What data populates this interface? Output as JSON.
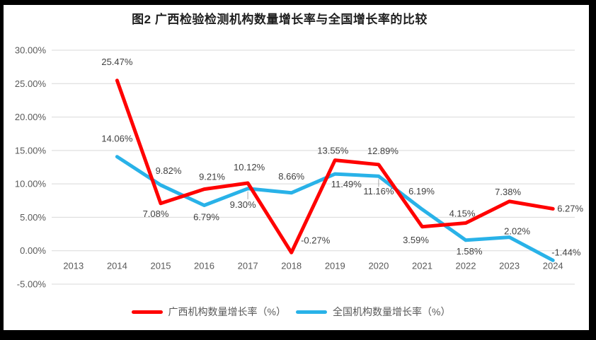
{
  "chart_data": {
    "type": "line",
    "title": "图2 广西检验检测机构数量增长率与全国增长率的比较",
    "categories": [
      "2013",
      "2014",
      "2015",
      "2016",
      "2017",
      "2018",
      "2019",
      "2020",
      "2021",
      "2022",
      "2023",
      "2024"
    ],
    "series": [
      {
        "name": "广西机构数量增长率（%）",
        "color": "#FF0000",
        "values": [
          null,
          25.47,
          7.08,
          9.21,
          10.12,
          -0.27,
          13.55,
          12.89,
          3.59,
          4.15,
          7.38,
          6.27
        ],
        "labels": [
          null,
          "25.47%",
          "7.08%",
          "9.21%",
          "10.12%",
          "-0.27%",
          "13.55%",
          "12.89%",
          "3.59%",
          "4.15%",
          "7.38%",
          "6.27%"
        ]
      },
      {
        "name": "全国机构数量增长率（%）",
        "color": "#29B2E8",
        "values": [
          null,
          14.06,
          9.82,
          6.79,
          9.3,
          8.66,
          11.49,
          11.16,
          6.19,
          1.58,
          2.02,
          -1.44
        ],
        "labels": [
          null,
          "14.06%",
          "9.82%",
          "6.79%",
          "9.30%",
          "8.66%",
          "11.49%",
          "11.16%",
          "6.19%",
          "1.58%",
          "2.02%",
          "-1.44%"
        ]
      }
    ],
    "y_axis": {
      "min": -5,
      "max": 30,
      "ticks": [
        30,
        25,
        20,
        15,
        10,
        5,
        0,
        -5
      ],
      "tick_labels": [
        "30.00%",
        "25.00%",
        "20.00%",
        "15.00%",
        "10.00%",
        "5.00%",
        "0.00%",
        "-5.00%"
      ]
    },
    "grid": true,
    "legend_position": "bottom",
    "colors": {
      "gridline": "#D9D9D9",
      "axis_text": "#595959",
      "data_label": "#404040",
      "leader_line": "#A6A6A6",
      "frame_border": "#000000",
      "background": "#FFFFFF"
    }
  }
}
